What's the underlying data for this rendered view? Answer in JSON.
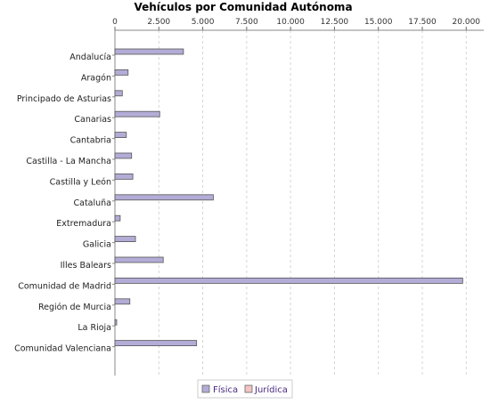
{
  "chart_data": {
    "type": "bar",
    "orientation": "horizontal",
    "title": "Vehículos por Comunidad Autónoma",
    "xlabel": "",
    "ylabel": "",
    "xlim": [
      0,
      21000
    ],
    "x_ticks": [
      0,
      2500,
      5000,
      7500,
      10000,
      12500,
      15000,
      17500,
      20000
    ],
    "x_tick_labels": [
      "0",
      "2.500",
      "5.000",
      "7.500",
      "10.000",
      "12.500",
      "15.000",
      "17.500",
      "20.000"
    ],
    "axis_position": "top",
    "grid": true,
    "legend_position": "bottom",
    "categories": [
      "Andalucía",
      "Aragón",
      "Principado de Asturias",
      "Canarias",
      "Cantabria",
      "Castilla - La Mancha",
      "Castilla y León",
      "Cataluña",
      "Extremadura",
      "Galicia",
      "Illes Balears",
      "Comunidad de Madrid",
      "Región de Murcia",
      "La Rioja",
      "Comunidad Valenciana"
    ],
    "series": [
      {
        "name": "Física",
        "color": "#b3acd6",
        "values": [
          3900,
          750,
          420,
          2550,
          650,
          950,
          1020,
          5600,
          300,
          1170,
          2750,
          19800,
          850,
          100,
          4650
        ]
      },
      {
        "name": "Jurídica",
        "color": "#f4c4c4",
        "values": [
          0,
          0,
          0,
          0,
          0,
          0,
          0,
          0,
          0,
          0,
          0,
          0,
          0,
          0,
          0
        ]
      }
    ]
  }
}
